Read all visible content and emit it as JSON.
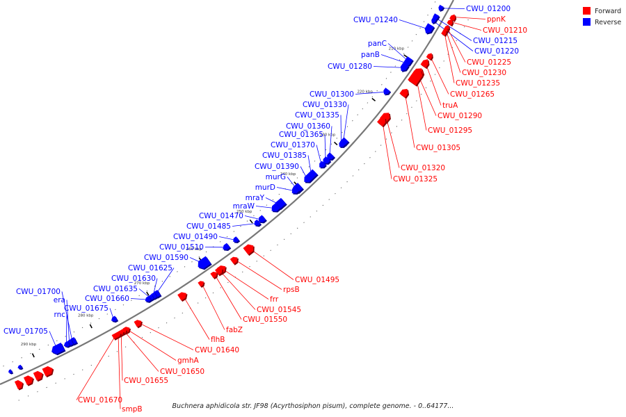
{
  "caption": "Buchnera aphidicola str. JF98 (Acyrthosiphon pisum), complete genome. - 0..64177...",
  "legend": [
    {
      "label": "Forward",
      "color": "#ff0000"
    },
    {
      "label": "Reverse",
      "color": "#0000ff"
    }
  ],
  "colors": {
    "forward": "#ff0000",
    "reverse": "#0000ff",
    "backbone": "#777777"
  },
  "ticks": [
    "210 kbp",
    "220 kbp",
    "230 kbp",
    "240 kbp",
    "250 kbp",
    "260 kbp",
    "270 kbp",
    "280 kbp",
    "290 kbp"
  ],
  "reverse_labels": [
    "CWU_01200",
    "CWU_01215",
    "CWU_01220",
    "CWU_01240",
    "panC",
    "panB",
    "CWU_01280",
    "CWU_01300",
    "CWU_01330",
    "CWU_01335",
    "CWU_01360",
    "CWU_01365",
    "CWU_01370",
    "CWU_01385",
    "CWU_01390",
    "murG",
    "murD",
    "mraY",
    "mraW",
    "CWU_01470",
    "CWU_01485",
    "CWU_01490",
    "CWU_01510",
    "CWU_01590",
    "CWU_01625",
    "CWU_01630",
    "CWU_01635",
    "CWU_01660",
    "CWU_01675",
    "CWU_01700",
    "era",
    "rnc",
    "CWU_01705"
  ],
  "forward_labels": [
    "ppnK",
    "CWU_01210",
    "CWU_01225",
    "CWU_01230",
    "CWU_01235",
    "CWU_01265",
    "truA",
    "CWU_01290",
    "CWU_01295",
    "CWU_01305",
    "CWU_01320",
    "CWU_01325",
    "CWU_01495",
    "rpsB",
    "frr",
    "CWU_01545",
    "CWU_01550",
    "fabZ",
    "flhB",
    "CWU_01640",
    "gmhA",
    "CWU_01650",
    "CWU_01655",
    "CWU_01670",
    "smpB"
  ]
}
